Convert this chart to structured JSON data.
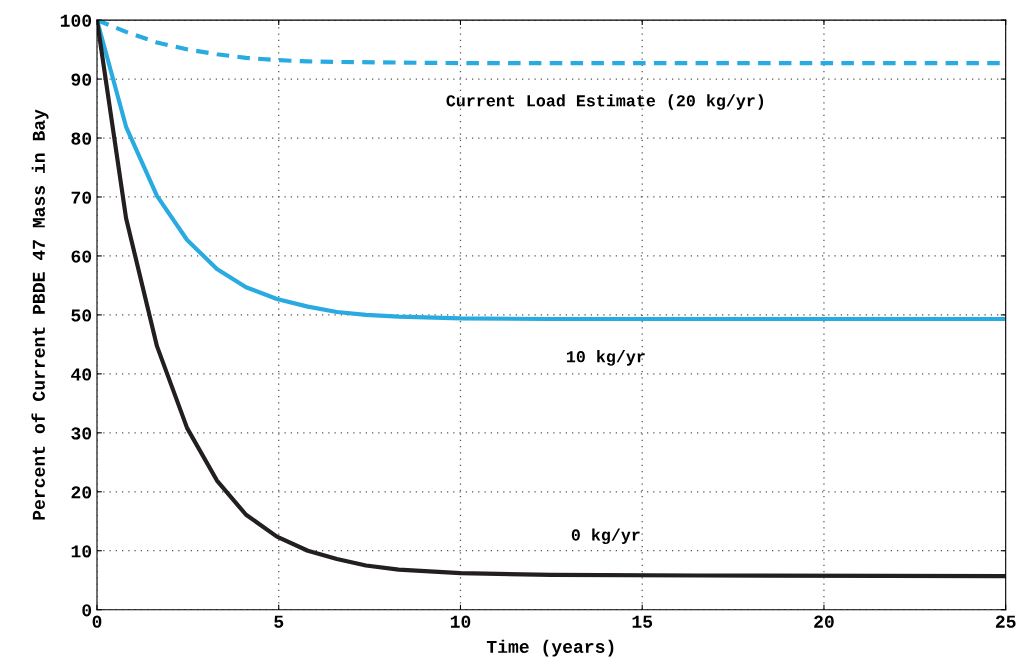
{
  "chart_data": {
    "type": "line",
    "xlabel": "Time (years)",
    "ylabel": "Percent of Current PBDE 47 Mass in Bay",
    "series": [
      {
        "name": "Current Load Estimate (20 kg/yr)",
        "color": "#29abe2",
        "line_style": "dashed",
        "x": [
          0,
          0.8,
          1.65,
          2.5,
          3.3,
          4.1,
          5,
          5.8,
          6.6,
          8.3,
          10,
          12.5,
          16.6,
          25
        ],
        "values": [
          100,
          98,
          96.2,
          95,
          94.2,
          93.6,
          93.2,
          93,
          92.9,
          92.8,
          92.7,
          92.7,
          92.7,
          92.7
        ]
      },
      {
        "name": "10 kg/yr",
        "color": "#29abe2",
        "line_style": "solid",
        "x": [
          0,
          0.8,
          1.65,
          2.48,
          3.3,
          4.1,
          4.95,
          5.8,
          6.6,
          7.4,
          8.3,
          10,
          12.5,
          16.6,
          25
        ],
        "values": [
          100,
          81.9,
          70.2,
          62.7,
          57.8,
          54.7,
          52.7,
          51.4,
          50.5,
          50,
          49.7,
          49.4,
          49.3,
          49.3,
          49.3
        ]
      },
      {
        "name": "0 kg/yr",
        "color": "#231f20",
        "line_style": "solid",
        "x": [
          0,
          0.8,
          1.65,
          2.48,
          3.3,
          4.1,
          4.95,
          5.8,
          6.6,
          7.4,
          8.3,
          10,
          12.5,
          16.6,
          25
        ],
        "values": [
          100,
          66.4,
          44.7,
          30.8,
          21.9,
          16.1,
          12.4,
          10,
          8.6,
          7.5,
          6.8,
          6.2,
          5.9,
          5.8,
          5.7
        ]
      }
    ],
    "xlim": [
      0,
      25
    ],
    "xticks": [
      0,
      5,
      10,
      15,
      20,
      25
    ],
    "ylim": [
      0,
      100
    ],
    "yticks": [
      0,
      10,
      20,
      30,
      40,
      50,
      60,
      70,
      80,
      90,
      100
    ],
    "grid": true
  }
}
